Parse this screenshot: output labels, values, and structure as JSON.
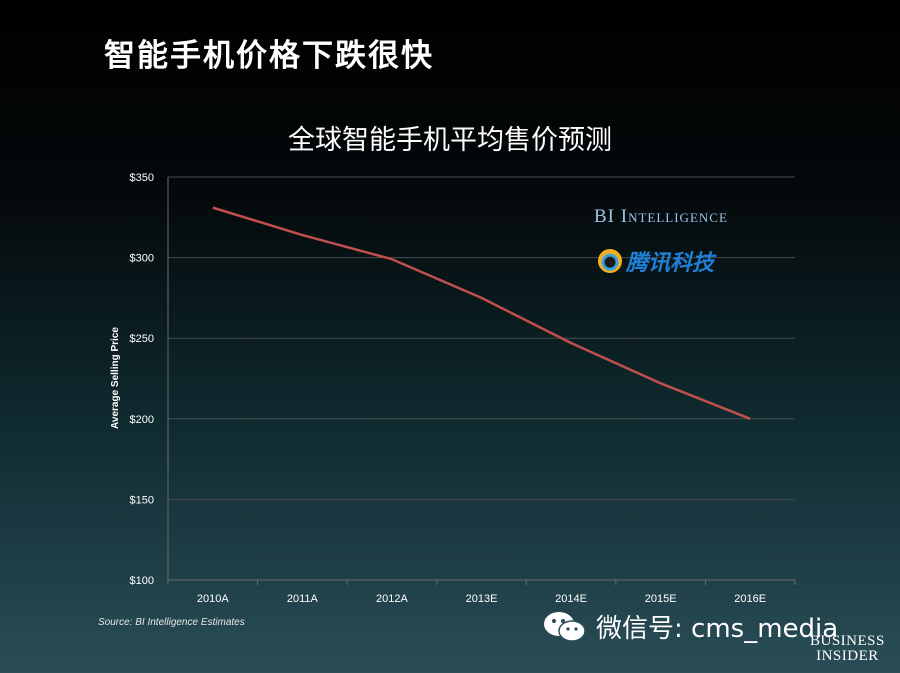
{
  "header": {
    "title": "智能手机价格下跌很快"
  },
  "branding": {
    "bi_intelligence": "BI Intelligence",
    "tencent": "腾讯科技",
    "wechat": "微信号: cms_media",
    "business_insider_line1": "BUSINESS",
    "business_insider_line2": "INSIDER"
  },
  "source": "Source: BI Intelligence Estimates",
  "colors": {
    "line": "#c0504d",
    "grid": "#4a4a4a",
    "axis_text": "#ffffff"
  },
  "chart_data": {
    "type": "line",
    "title": "全球智能手机平均售价预测",
    "xlabel": "",
    "ylabel": "Average Selling Price",
    "categories": [
      "2010A",
      "2011A",
      "2012A",
      "2013E",
      "2014E",
      "2015E",
      "2016E"
    ],
    "series": [
      {
        "values": [
          331,
          314,
          299,
          275,
          247,
          222,
          200
        ]
      }
    ],
    "ylim": [
      100,
      350
    ],
    "yticks": [
      100,
      150,
      200,
      250,
      300,
      350
    ],
    "ytick_labels": [
      "$100",
      "$150",
      "$200",
      "$250",
      "$300",
      "$350"
    ],
    "grid": true,
    "legend": "none"
  }
}
